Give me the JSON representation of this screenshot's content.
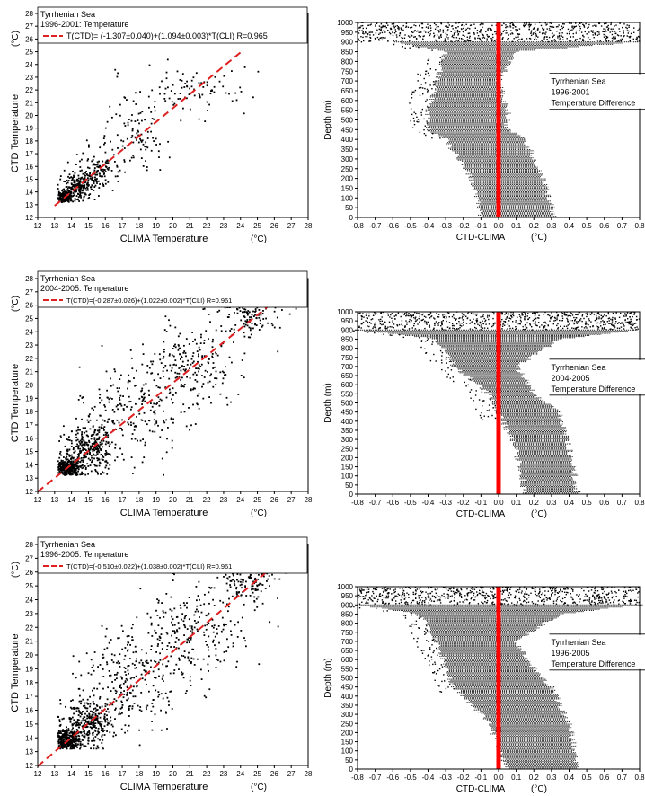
{
  "chart_data": [
    {
      "type": "scatter",
      "panel": "scatter-1996-2001",
      "legend": {
        "lines": [
          "Tyrrhenian Sea",
          "1996-2001: Temperature"
        ],
        "fit_label": "T(CTD)= (-1.307±0.040)+(1.094±0.003)*T(CLI) R=0.965",
        "placement": "top-left"
      },
      "xlabel": "CLIMA Temperature",
      "ylabel": "CTD Temperature",
      "xunit": "(°C)",
      "yunit": "(°C)",
      "xlim": [
        12,
        28
      ],
      "ylim": [
        12,
        28
      ],
      "xticks": [
        "12",
        "13",
        "14",
        "15",
        "16",
        "17",
        "18",
        "19",
        "20",
        "21",
        "22",
        "23",
        "24",
        "25",
        "26",
        "27",
        "28"
      ],
      "yticks": [
        "12",
        "13",
        "14",
        "15",
        "16",
        "17",
        "18",
        "19",
        "20",
        "21",
        "22",
        "23",
        "24",
        "25",
        "26",
        "27",
        "28"
      ],
      "fit": {
        "intercept": -1.307,
        "slope": 1.094,
        "line_x": [
          13,
          24
        ],
        "color": "#e02020"
      },
      "cloud": [
        {
          "x": 13.6,
          "y": 13.6,
          "sx": 0.25,
          "sy": 0.25,
          "n": 180
        },
        {
          "x": 14.5,
          "y": 14.5,
          "sx": 0.5,
          "sy": 0.5,
          "n": 220
        },
        {
          "x": 15.5,
          "y": 15.6,
          "sx": 0.6,
          "sy": 0.7,
          "n": 120
        },
        {
          "x": 17.5,
          "y": 18.5,
          "sx": 1.2,
          "sy": 1.6,
          "n": 110
        },
        {
          "x": 21.0,
          "y": 22.0,
          "sx": 1.3,
          "sy": 0.9,
          "n": 90
        }
      ]
    },
    {
      "type": "scatter",
      "panel": "depth-1996-2001",
      "legend": {
        "lines": [
          "Tyrrhenian Sea",
          "1996-2001",
          "Temperature Difference"
        ],
        "placement": "right"
      },
      "xlabel": "CTD-CLIMA",
      "ylabel": "Depth (m)",
      "xunit": "(°C)",
      "xlim": [
        -0.8,
        0.8
      ],
      "ylim": [
        0,
        1000
      ],
      "xticks": [
        "-0.8",
        "-0.7",
        "-0.6",
        "-0.5",
        "-0.4",
        "-0.3",
        "-0.2",
        "-0.1",
        "0.0",
        "0.1",
        "0.2",
        "0.3",
        "0.4",
        "0.5",
        "0.6",
        "0.7",
        "0.8"
      ],
      "yticks": [
        "0",
        "50",
        "100",
        "150",
        "200",
        "250",
        "300",
        "350",
        "400",
        "450",
        "500",
        "550",
        "600",
        "650",
        "700",
        "750",
        "800",
        "850",
        "900",
        "950",
        "1000"
      ],
      "zero_line": {
        "x": 0.0,
        "color": "#ff0000"
      },
      "profile": [
        {
          "depth": 0,
          "min": -0.8,
          "max": 0.8
        },
        {
          "depth": 100,
          "min": -0.6,
          "max": 0.8
        },
        {
          "depth": 150,
          "min": -0.3,
          "max": 0.1
        },
        {
          "depth": 300,
          "min": -0.35,
          "max": 0.0
        },
        {
          "depth": 450,
          "min": -0.4,
          "max": 0.05
        },
        {
          "depth": 550,
          "min": -0.4,
          "max": 0.05
        },
        {
          "depth": 600,
          "min": -0.3,
          "max": 0.15
        },
        {
          "depth": 800,
          "min": -0.15,
          "max": 0.25
        },
        {
          "depth": 1000,
          "min": -0.1,
          "max": 0.32
        }
      ]
    },
    {
      "type": "scatter",
      "panel": "scatter-2004-2005",
      "legend": {
        "lines": [
          "Tyrrhenian Sea",
          "2004-2005: Temperature"
        ],
        "fit_label": "T(CTD)=(-0.287±0.026)+(1.022±0.002)*T(CLI) R=0.961",
        "placement": "top-left"
      },
      "xlabel": "CLIMA Temperature",
      "ylabel": "CTD Temperature",
      "xunit": "(°C)",
      "yunit": "(°C)",
      "xlim": [
        12,
        28
      ],
      "ylim": [
        12,
        28
      ],
      "xticks": [
        "12",
        "13",
        "14",
        "15",
        "16",
        "17",
        "18",
        "19",
        "20",
        "21",
        "22",
        "23",
        "24",
        "25",
        "26",
        "27",
        "28"
      ],
      "yticks": [
        "12",
        "13",
        "14",
        "15",
        "16",
        "17",
        "18",
        "19",
        "20",
        "21",
        "22",
        "23",
        "24",
        "25",
        "26",
        "27",
        "28"
      ],
      "fit": {
        "intercept": -0.287,
        "slope": 1.022,
        "line_x": [
          12,
          27.5
        ],
        "color": "#e02020"
      },
      "cloud": [
        {
          "x": 13.8,
          "y": 13.8,
          "sx": 0.4,
          "sy": 0.35,
          "n": 300
        },
        {
          "x": 15.0,
          "y": 15.2,
          "sx": 0.8,
          "sy": 0.9,
          "n": 300
        },
        {
          "x": 17.5,
          "y": 18.0,
          "sx": 1.5,
          "sy": 1.8,
          "n": 220
        },
        {
          "x": 21.0,
          "y": 21.5,
          "sx": 1.6,
          "sy": 1.6,
          "n": 220
        },
        {
          "x": 24.5,
          "y": 25.5,
          "sx": 0.9,
          "sy": 0.9,
          "n": 160
        }
      ]
    },
    {
      "type": "scatter",
      "panel": "depth-2004-2005",
      "legend": {
        "lines": [
          "Tyrrhenian Sea",
          "2004-2005",
          "Temperature Difference"
        ],
        "placement": "right"
      },
      "xlabel": "CTD-CLIMA",
      "ylabel": "Depth (m)",
      "xunit": "(°C)",
      "xlim": [
        -0.8,
        0.8
      ],
      "ylim": [
        0,
        1000
      ],
      "xticks": [
        "-0.8",
        "-0.7",
        "-0.6",
        "-0.5",
        "-0.4",
        "-0.3",
        "-0.2",
        "-0.1",
        "0.0",
        "0.1",
        "0.2",
        "0.3",
        "0.4",
        "0.5",
        "0.6",
        "0.7",
        "0.8"
      ],
      "yticks": [
        "0",
        "50",
        "100",
        "150",
        "200",
        "250",
        "300",
        "350",
        "400",
        "450",
        "500",
        "550",
        "600",
        "650",
        "700",
        "750",
        "800",
        "850",
        "900",
        "950",
        "1000"
      ],
      "zero_line": {
        "x": 0.0,
        "color": "#ff0000"
      },
      "profile": [
        {
          "depth": 0,
          "min": -0.8,
          "max": 0.8
        },
        {
          "depth": 100,
          "min": -0.8,
          "max": 0.8
        },
        {
          "depth": 150,
          "min": -0.35,
          "max": 0.35
        },
        {
          "depth": 300,
          "min": -0.25,
          "max": 0.1
        },
        {
          "depth": 450,
          "min": -0.05,
          "max": 0.2
        },
        {
          "depth": 550,
          "min": 0.0,
          "max": 0.35
        },
        {
          "depth": 750,
          "min": 0.1,
          "max": 0.4
        },
        {
          "depth": 1000,
          "min": 0.15,
          "max": 0.45
        }
      ]
    },
    {
      "type": "scatter",
      "panel": "scatter-1996-2005",
      "legend": {
        "lines": [
          "Tyrrhenian Sea",
          "1996-2005: Temperature"
        ],
        "fit_label": "T(CTD)=(-0.510±0.022)+(1.038±0.002)*T(CLI) R=0.961",
        "placement": "top-left"
      },
      "xlabel": "CLIMA Temperature",
      "ylabel": "CTD Temperature",
      "xunit": "(°C)",
      "yunit": "(°C)",
      "xlim": [
        12,
        28
      ],
      "ylim": [
        12,
        28
      ],
      "xticks": [
        "12",
        "13",
        "14",
        "15",
        "16",
        "17",
        "18",
        "19",
        "20",
        "21",
        "22",
        "23",
        "24",
        "25",
        "26",
        "27",
        "28"
      ],
      "yticks": [
        "12",
        "13",
        "14",
        "15",
        "16",
        "17",
        "18",
        "19",
        "20",
        "21",
        "22",
        "23",
        "24",
        "25",
        "26",
        "27",
        "28"
      ],
      "fit": {
        "intercept": -0.51,
        "slope": 1.038,
        "line_x": [
          12,
          27.5
        ],
        "color": "#e02020"
      },
      "cloud": [
        {
          "x": 13.8,
          "y": 13.8,
          "sx": 0.4,
          "sy": 0.35,
          "n": 330
        },
        {
          "x": 15.0,
          "y": 15.2,
          "sx": 0.8,
          "sy": 0.9,
          "n": 330
        },
        {
          "x": 17.5,
          "y": 18.0,
          "sx": 1.5,
          "sy": 1.8,
          "n": 250
        },
        {
          "x": 21.0,
          "y": 21.5,
          "sx": 1.6,
          "sy": 1.6,
          "n": 250
        },
        {
          "x": 24.5,
          "y": 25.5,
          "sx": 0.9,
          "sy": 0.9,
          "n": 170
        }
      ]
    },
    {
      "type": "scatter",
      "panel": "depth-1996-2005",
      "legend": {
        "lines": [
          "Tyrrhenian Sea",
          "1996-2005",
          "Temperature Difference"
        ],
        "placement": "right"
      },
      "xlabel": "CTD-CLIMA",
      "ylabel": "Depth (m)",
      "xunit": "(°C)",
      "xlim": [
        -0.8,
        0.8
      ],
      "ylim": [
        0,
        1000
      ],
      "xticks": [
        "-0.8",
        "-0.7",
        "-0.6",
        "-0.5",
        "-0.4",
        "-0.3",
        "-0.2",
        "-0.1",
        "0.0",
        "0.1",
        "0.2",
        "0.3",
        "0.4",
        "0.5",
        "0.6",
        "0.7",
        "0.8"
      ],
      "yticks": [
        "0",
        "50",
        "100",
        "150",
        "200",
        "250",
        "300",
        "350",
        "400",
        "450",
        "500",
        "550",
        "600",
        "650",
        "700",
        "750",
        "800",
        "850",
        "900",
        "950",
        "1000"
      ],
      "zero_line": {
        "x": 0.0,
        "color": "#ff0000"
      },
      "profile": [
        {
          "depth": 0,
          "min": -0.8,
          "max": 0.8
        },
        {
          "depth": 100,
          "min": -0.8,
          "max": 0.8
        },
        {
          "depth": 150,
          "min": -0.45,
          "max": 0.35
        },
        {
          "depth": 300,
          "min": -0.35,
          "max": 0.1
        },
        {
          "depth": 450,
          "min": -0.3,
          "max": 0.2
        },
        {
          "depth": 550,
          "min": -0.25,
          "max": 0.3
        },
        {
          "depth": 750,
          "min": -0.05,
          "max": 0.4
        },
        {
          "depth": 1000,
          "min": 0.05,
          "max": 0.45
        }
      ]
    }
  ]
}
